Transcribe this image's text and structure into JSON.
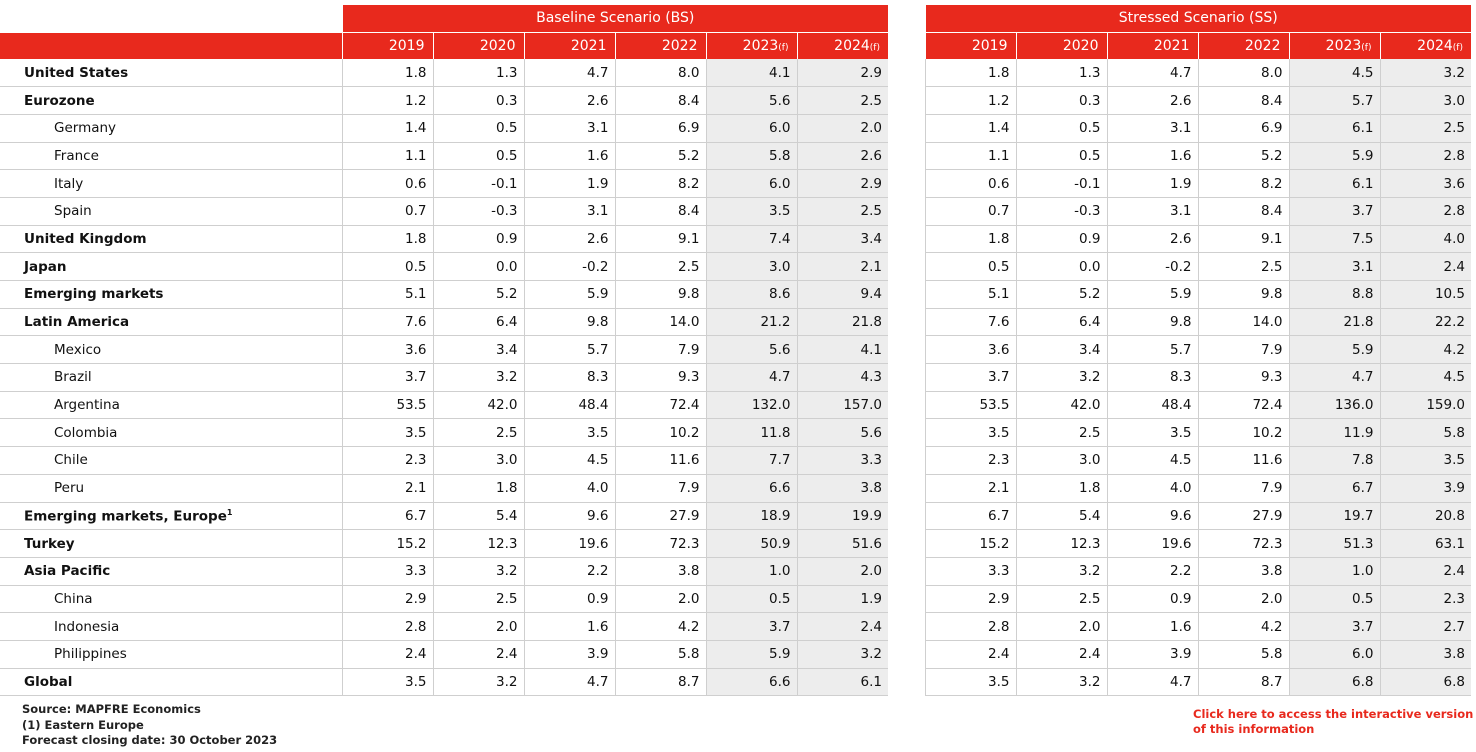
{
  "header": {
    "baseline_title": "Baseline Scenario (BS)",
    "stressed_title": "Stressed Scenario (SS)",
    "years": [
      "2019",
      "2020",
      "2021",
      "2022",
      "2023",
      "2024"
    ],
    "forecast_marker": "(f)"
  },
  "rows": [
    {
      "label": "United States",
      "sub": false,
      "bs": [
        "1.8",
        "1.3",
        "4.7",
        "8.0",
        "4.1",
        "2.9"
      ],
      "ss": [
        "1.8",
        "1.3",
        "4.7",
        "8.0",
        "4.5",
        "3.2"
      ]
    },
    {
      "label": "Eurozone",
      "sub": false,
      "bs": [
        "1.2",
        "0.3",
        "2.6",
        "8.4",
        "5.6",
        "2.5"
      ],
      "ss": [
        "1.2",
        "0.3",
        "2.6",
        "8.4",
        "5.7",
        "3.0"
      ]
    },
    {
      "label": "Germany",
      "sub": true,
      "bs": [
        "1.4",
        "0.5",
        "3.1",
        "6.9",
        "6.0",
        "2.0"
      ],
      "ss": [
        "1.4",
        "0.5",
        "3.1",
        "6.9",
        "6.1",
        "2.5"
      ]
    },
    {
      "label": "France",
      "sub": true,
      "bs": [
        "1.1",
        "0.5",
        "1.6",
        "5.2",
        "5.8",
        "2.6"
      ],
      "ss": [
        "1.1",
        "0.5",
        "1.6",
        "5.2",
        "5.9",
        "2.8"
      ]
    },
    {
      "label": "Italy",
      "sub": true,
      "bs": [
        "0.6",
        "-0.1",
        "1.9",
        "8.2",
        "6.0",
        "2.9"
      ],
      "ss": [
        "0.6",
        "-0.1",
        "1.9",
        "8.2",
        "6.1",
        "3.6"
      ]
    },
    {
      "label": "Spain",
      "sub": true,
      "bs": [
        "0.7",
        "-0.3",
        "3.1",
        "8.4",
        "3.5",
        "2.5"
      ],
      "ss": [
        "0.7",
        "-0.3",
        "3.1",
        "8.4",
        "3.7",
        "2.8"
      ]
    },
    {
      "label": "United Kingdom",
      "sub": false,
      "bs": [
        "1.8",
        "0.9",
        "2.6",
        "9.1",
        "7.4",
        "3.4"
      ],
      "ss": [
        "1.8",
        "0.9",
        "2.6",
        "9.1",
        "7.5",
        "4.0"
      ]
    },
    {
      "label": "Japan",
      "sub": false,
      "bs": [
        "0.5",
        "0.0",
        "-0.2",
        "2.5",
        "3.0",
        "2.1"
      ],
      "ss": [
        "0.5",
        "0.0",
        "-0.2",
        "2.5",
        "3.1",
        "2.4"
      ]
    },
    {
      "label": "Emerging markets",
      "sub": false,
      "bs": [
        "5.1",
        "5.2",
        "5.9",
        "9.8",
        "8.6",
        "9.4"
      ],
      "ss": [
        "5.1",
        "5.2",
        "5.9",
        "9.8",
        "8.8",
        "10.5"
      ]
    },
    {
      "label": "Latin America",
      "sub": false,
      "bs": [
        "7.6",
        "6.4",
        "9.8",
        "14.0",
        "21.2",
        "21.8"
      ],
      "ss": [
        "7.6",
        "6.4",
        "9.8",
        "14.0",
        "21.8",
        "22.2"
      ]
    },
    {
      "label": "Mexico",
      "sub": true,
      "bs": [
        "3.6",
        "3.4",
        "5.7",
        "7.9",
        "5.6",
        "4.1"
      ],
      "ss": [
        "3.6",
        "3.4",
        "5.7",
        "7.9",
        "5.9",
        "4.2"
      ]
    },
    {
      "label": "Brazil",
      "sub": true,
      "bs": [
        "3.7",
        "3.2",
        "8.3",
        "9.3",
        "4.7",
        "4.3"
      ],
      "ss": [
        "3.7",
        "3.2",
        "8.3",
        "9.3",
        "4.7",
        "4.5"
      ]
    },
    {
      "label": "Argentina",
      "sub": true,
      "bs": [
        "53.5",
        "42.0",
        "48.4",
        "72.4",
        "132.0",
        "157.0"
      ],
      "ss": [
        "53.5",
        "42.0",
        "48.4",
        "72.4",
        "136.0",
        "159.0"
      ]
    },
    {
      "label": "Colombia",
      "sub": true,
      "bs": [
        "3.5",
        "2.5",
        "3.5",
        "10.2",
        "11.8",
        "5.6"
      ],
      "ss": [
        "3.5",
        "2.5",
        "3.5",
        "10.2",
        "11.9",
        "5.8"
      ]
    },
    {
      "label": "Chile",
      "sub": true,
      "bs": [
        "2.3",
        "3.0",
        "4.5",
        "11.6",
        "7.7",
        "3.3"
      ],
      "ss": [
        "2.3",
        "3.0",
        "4.5",
        "11.6",
        "7.8",
        "3.5"
      ]
    },
    {
      "label": "Peru",
      "sub": true,
      "bs": [
        "2.1",
        "1.8",
        "4.0",
        "7.9",
        "6.6",
        "3.8"
      ],
      "ss": [
        "2.1",
        "1.8",
        "4.0",
        "7.9",
        "6.7",
        "3.9"
      ]
    },
    {
      "label": "Emerging markets, Europe",
      "footnote": "1",
      "sub": false,
      "bs": [
        "6.7",
        "5.4",
        "9.6",
        "27.9",
        "18.9",
        "19.9"
      ],
      "ss": [
        "6.7",
        "5.4",
        "9.6",
        "27.9",
        "19.7",
        "20.8"
      ]
    },
    {
      "label": "Turkey",
      "sub": false,
      "bs": [
        "15.2",
        "12.3",
        "19.6",
        "72.3",
        "50.9",
        "51.6"
      ],
      "ss": [
        "15.2",
        "12.3",
        "19.6",
        "72.3",
        "51.3",
        "63.1"
      ]
    },
    {
      "label": "Asia Pacific",
      "sub": false,
      "bs": [
        "3.3",
        "3.2",
        "2.2",
        "3.8",
        "1.0",
        "2.0"
      ],
      "ss": [
        "3.3",
        "3.2",
        "2.2",
        "3.8",
        "1.0",
        "2.4"
      ]
    },
    {
      "label": "China",
      "sub": true,
      "bs": [
        "2.9",
        "2.5",
        "0.9",
        "2.0",
        "0.5",
        "1.9"
      ],
      "ss": [
        "2.9",
        "2.5",
        "0.9",
        "2.0",
        "0.5",
        "2.3"
      ]
    },
    {
      "label": "Indonesia",
      "sub": true,
      "bs": [
        "2.8",
        "2.0",
        "1.6",
        "4.2",
        "3.7",
        "2.4"
      ],
      "ss": [
        "2.8",
        "2.0",
        "1.6",
        "4.2",
        "3.7",
        "2.7"
      ]
    },
    {
      "label": "Philippines",
      "sub": true,
      "bs": [
        "2.4",
        "2.4",
        "3.9",
        "5.8",
        "5.9",
        "3.2"
      ],
      "ss": [
        "2.4",
        "2.4",
        "3.9",
        "5.8",
        "6.0",
        "3.8"
      ]
    },
    {
      "label": "Global",
      "sub": false,
      "bs": [
        "3.5",
        "3.2",
        "4.7",
        "8.7",
        "6.6",
        "6.1"
      ],
      "ss": [
        "3.5",
        "3.2",
        "4.7",
        "8.7",
        "6.8",
        "6.8"
      ]
    }
  ],
  "footer": {
    "source": "Source: MAPFRE Economics",
    "note": "(1) Eastern Europe",
    "closing": "Forecast closing date: 30 October 2023"
  },
  "link": {
    "line1": "Click here to access the interactive version",
    "line2": "of this information"
  },
  "colors": {
    "header_red": "#e8291d",
    "forecast_shade": "#ededed"
  }
}
